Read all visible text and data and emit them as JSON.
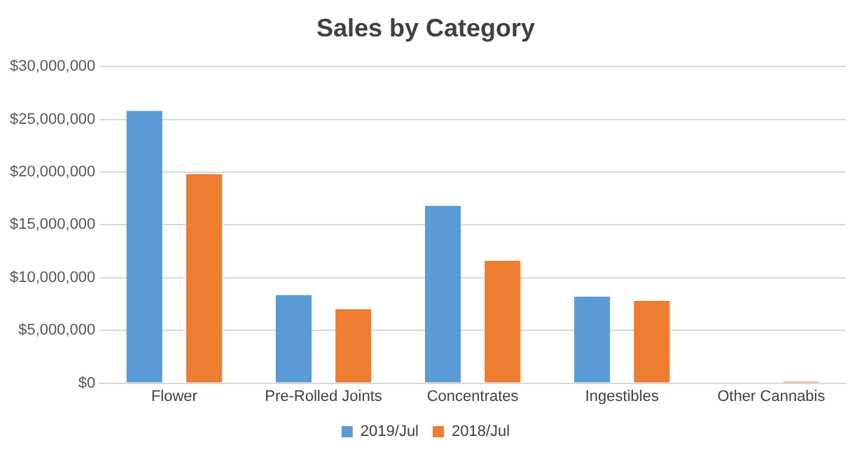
{
  "chart_data": {
    "type": "bar",
    "title": "Sales by Category",
    "categories": [
      "Flower",
      "Pre-Rolled Joints",
      "Concentrates",
      "Ingestibles",
      "Other Cannabis"
    ],
    "series": [
      {
        "name": "2019/Jul",
        "color": "#5b9bd5",
        "values": [
          25800000,
          8350000,
          16800000,
          8200000,
          0
        ]
      },
      {
        "name": "2018/Jul",
        "color": "#ed7d31",
        "values": [
          19800000,
          7000000,
          11600000,
          7800000,
          140000
        ]
      }
    ],
    "ylim": [
      0,
      30000000
    ],
    "yticks": [
      {
        "value": 0,
        "label": "$0"
      },
      {
        "value": 5000000,
        "label": "$5,000,000"
      },
      {
        "value": 10000000,
        "label": "$10,000,000"
      },
      {
        "value": 15000000,
        "label": "$15,000,000"
      },
      {
        "value": 20000000,
        "label": "$20,000,000"
      },
      {
        "value": 25000000,
        "label": "$25,000,000"
      },
      {
        "value": 30000000,
        "label": "$30,000,000"
      }
    ],
    "grid": "y",
    "legend": "bottom"
  }
}
